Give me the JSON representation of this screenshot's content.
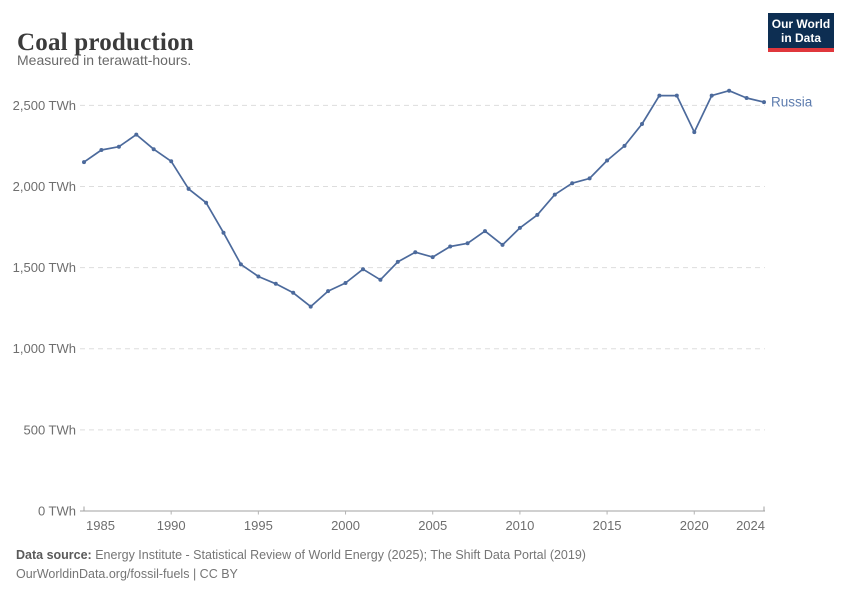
{
  "header": {
    "title": "Coal production",
    "subtitle": "Measured in terawatt-hours.",
    "logo": {
      "line1": "Our World",
      "line2": "in Data",
      "bg": "#0d2e52",
      "accent": "#e0373c"
    }
  },
  "chart_data": {
    "type": "line",
    "title": "Coal production",
    "ylabel": "",
    "xlabel": "",
    "unit": "TWh",
    "grid": "horizontal-dashed",
    "ylim": [
      0,
      2700
    ],
    "xlim": [
      1985,
      2024
    ],
    "x": [
      1985,
      1986,
      1987,
      1988,
      1989,
      1990,
      1991,
      1992,
      1993,
      1994,
      1995,
      1996,
      1997,
      1998,
      1999,
      2000,
      2001,
      2002,
      2003,
      2004,
      2005,
      2006,
      2007,
      2008,
      2009,
      2010,
      2011,
      2012,
      2013,
      2014,
      2015,
      2016,
      2017,
      2018,
      2019,
      2020,
      2021,
      2022,
      2023,
      2024
    ],
    "series": [
      {
        "name": "Russia",
        "color": "#4C6A9C",
        "label_color": "#5d7cae",
        "values": [
          2150,
          2225,
          2245,
          2320,
          2230,
          2155,
          1985,
          1900,
          1715,
          1520,
          1445,
          1400,
          1345,
          1260,
          1355,
          1405,
          1490,
          1425,
          1535,
          1595,
          1565,
          1630,
          1650,
          1725,
          1640,
          1745,
          1825,
          1950,
          2020,
          2050,
          2160,
          2250,
          2385,
          2560,
          2560,
          2335,
          2560,
          2590,
          2545,
          2520
        ]
      }
    ],
    "x_ticks": [
      1985,
      1990,
      1995,
      2000,
      2005,
      2010,
      2015,
      2020,
      2024
    ],
    "x_tick_labels": [
      "1985",
      "1990",
      "1995",
      "2000",
      "2005",
      "2010",
      "2015",
      "2020",
      "2024"
    ],
    "y_ticks": [
      0,
      500,
      1000,
      1500,
      2000,
      2500
    ],
    "y_tick_labels": [
      "0 TWh",
      "500 TWh",
      "1,000 TWh",
      "1,500 TWh",
      "2,000 TWh",
      "2,500 TWh"
    ],
    "legend_position": "end-of-line"
  },
  "footer": {
    "source_label": "Data source:",
    "source_text": "Energy Institute - Statistical Review of World Energy (2025); The Shift Data Portal (2019)",
    "url": "OurWorldinData.org/fossil-fuels",
    "separator": "|",
    "license": "CC BY"
  },
  "style_colors": {
    "grid": "#dddddd",
    "axis": "#a0a0a0",
    "tick": "#b3b3b3",
    "tick_label": "#6e6e6e"
  }
}
